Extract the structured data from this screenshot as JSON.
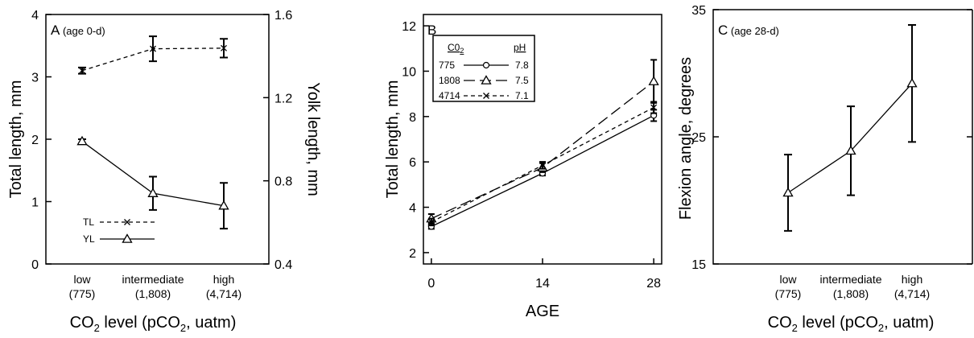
{
  "chart_data": [
    {
      "type": "line",
      "panel_label": "A",
      "panel_note": "(age 0-d)",
      "xlabel_main": "CO",
      "xlabel_sub": "2",
      "xlabel_rest": " level (pCO",
      "xlabel_sub2": "2",
      "xlabel_end": ", uatm)",
      "ylabel": "Total length, mm",
      "ylabel_right": "Yolk length, mm",
      "ylim": [
        0,
        4
      ],
      "ylim_right": [
        0.4,
        1.6
      ],
      "yticks": [
        "0",
        "1",
        "2",
        "3",
        "4"
      ],
      "yticks_right": [
        "0.4",
        "0.8",
        "1.2",
        "1.6"
      ],
      "categories": [
        {
          "top": "low",
          "bottom": "(775)"
        },
        {
          "top": "intermediate",
          "bottom": "(1,808)"
        },
        {
          "top": "high",
          "bottom": "(4,714)"
        }
      ],
      "legend": [
        {
          "label": "TL",
          "marker": "x",
          "dash": "dashed"
        },
        {
          "label": "YL",
          "marker": "triangle",
          "dash": "solid"
        }
      ],
      "series": [
        {
          "name": "TL",
          "axis": "left",
          "values": [
            3.1,
            3.45,
            3.46
          ],
          "errors": [
            0.05,
            0.2,
            0.15
          ],
          "marker": "x",
          "dash": "dashed"
        },
        {
          "name": "YL",
          "axis": "right",
          "values": [
            0.99,
            0.74,
            0.68
          ],
          "errors": [
            0.01,
            0.08,
            0.11
          ],
          "marker": "triangle",
          "dash": "solid"
        }
      ]
    },
    {
      "type": "line",
      "panel_label": "B",
      "xlabel": "AGE",
      "ylabel": "Total length, mm",
      "x": [
        0,
        14,
        28
      ],
      "xlim": [
        -1,
        29
      ],
      "xticks": [
        "0",
        "14",
        "28"
      ],
      "ylim": [
        1.5,
        12.5
      ],
      "yticks": [
        "2",
        "4",
        "6",
        "8",
        "10",
        "12"
      ],
      "legend_header_co2": "C0",
      "legend_header_co2_sub": "2",
      "legend_header_ph": "pH",
      "legend": [
        {
          "co2": "775",
          "ph": "7.8",
          "marker": "circle",
          "dash": "solid"
        },
        {
          "co2": "1808",
          "ph": "7.5",
          "marker": "triangle",
          "dash": "longdash"
        },
        {
          "co2": "4714",
          "ph": "7.1",
          "marker": "x",
          "dash": "dashed"
        }
      ],
      "series": [
        {
          "name": "775",
          "values": [
            3.15,
            5.5,
            8.05
          ],
          "errors": [
            0.1,
            0.1,
            0.25
          ],
          "marker": "circle",
          "dash": "solid"
        },
        {
          "name": "1808",
          "values": [
            3.5,
            5.75,
            9.55
          ],
          "errors": [
            0.2,
            0.2,
            0.95
          ],
          "marker": "triangle",
          "dash": "longdash"
        },
        {
          "name": "4714",
          "values": [
            3.35,
            5.85,
            8.4
          ],
          "errors": [
            0.15,
            0.15,
            0.25
          ],
          "marker": "x",
          "dash": "dashed"
        }
      ]
    },
    {
      "type": "line",
      "panel_label": "C",
      "panel_note": "(age 28-d)",
      "xlabel_main": "CO",
      "xlabel_sub": "2",
      "xlabel_rest": " level (pCO",
      "xlabel_sub2": "2",
      "xlabel_end": ", uatm)",
      "ylabel": "Flexion angle, degrees",
      "ylim": [
        15,
        35
      ],
      "yticks": [
        "15",
        "25",
        "35"
      ],
      "categories": [
        {
          "top": "low",
          "bottom": "(775)"
        },
        {
          "top": "intermediate",
          "bottom": "(1,808)"
        },
        {
          "top": "high",
          "bottom": "(4,714)"
        }
      ],
      "series": [
        {
          "values": [
            20.6,
            23.9,
            29.2
          ],
          "errors": [
            3.0,
            3.5,
            4.6
          ],
          "marker": "triangle",
          "dash": "solid"
        }
      ]
    }
  ]
}
